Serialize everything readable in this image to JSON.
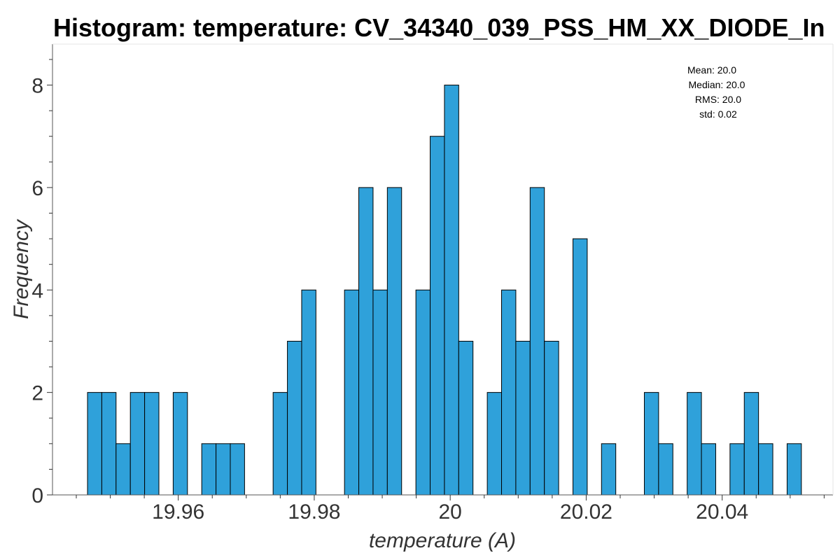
{
  "chart_data": {
    "type": "bar",
    "title": "Histogram: temperature: CV_34340_039_PSS_HM_XX_DIODE_In",
    "xlabel": "temperature (A)",
    "ylabel": "Frequency",
    "xlim": [
      19.9415,
      20.0563
    ],
    "ylim": [
      0,
      8.8
    ],
    "x_ticks": [
      "19.96",
      "19.98",
      "20",
      "20.02",
      "20.04"
    ],
    "x_tick_values": [
      19.96,
      19.98,
      20.0,
      20.02,
      20.04
    ],
    "y_ticks": [
      "0",
      "2",
      "4",
      "6",
      "8"
    ],
    "y_tick_values": [
      0,
      2,
      4,
      6,
      8
    ],
    "bin_width": 0.0021,
    "bar_color": "#2fa1da",
    "bins": [
      {
        "x": 19.9477,
        "count": 2
      },
      {
        "x": 19.9498,
        "count": 2
      },
      {
        "x": 19.9519,
        "count": 1
      },
      {
        "x": 19.954,
        "count": 2
      },
      {
        "x": 19.9561,
        "count": 2
      },
      {
        "x": 19.9603,
        "count": 2
      },
      {
        "x": 19.9645,
        "count": 1
      },
      {
        "x": 19.9666,
        "count": 1
      },
      {
        "x": 19.9687,
        "count": 1
      },
      {
        "x": 19.975,
        "count": 2
      },
      {
        "x": 19.9771,
        "count": 3
      },
      {
        "x": 19.9792,
        "count": 4
      },
      {
        "x": 19.9855,
        "count": 4
      },
      {
        "x": 19.9876,
        "count": 6
      },
      {
        "x": 19.9897,
        "count": 4
      },
      {
        "x": 19.9918,
        "count": 6
      },
      {
        "x": 19.996,
        "count": 4
      },
      {
        "x": 19.9981,
        "count": 7
      },
      {
        "x": 20.0002,
        "count": 8
      },
      {
        "x": 20.0023,
        "count": 3
      },
      {
        "x": 20.0065,
        "count": 2
      },
      {
        "x": 20.0086,
        "count": 4
      },
      {
        "x": 20.0107,
        "count": 3
      },
      {
        "x": 20.0128,
        "count": 6
      },
      {
        "x": 20.0149,
        "count": 3
      },
      {
        "x": 20.0191,
        "count": 5
      },
      {
        "x": 20.0233,
        "count": 1
      },
      {
        "x": 20.0296,
        "count": 2
      },
      {
        "x": 20.0317,
        "count": 1
      },
      {
        "x": 20.0359,
        "count": 2
      },
      {
        "x": 20.038,
        "count": 1
      },
      {
        "x": 20.0422,
        "count": 1
      },
      {
        "x": 20.0443,
        "count": 2
      },
      {
        "x": 20.0464,
        "count": 1
      },
      {
        "x": 20.0506,
        "count": 1
      }
    ],
    "stats": {
      "mean": "Mean: 20.0",
      "median": "Median: 20.0",
      "rms": "RMS: 20.0",
      "std": "std: 0.02"
    }
  }
}
